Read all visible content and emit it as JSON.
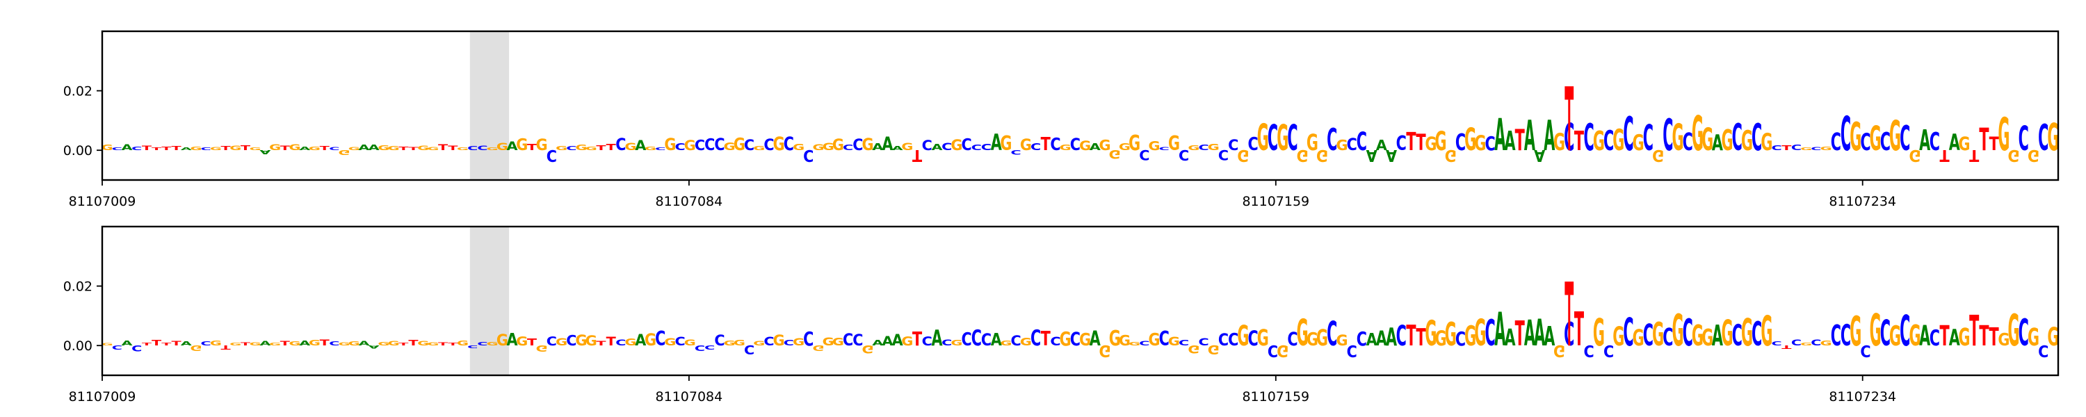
{
  "chart_data": [
    {
      "type": "sequence-logo",
      "title": "",
      "xlabel": "",
      "ylabel": "",
      "xlim": [
        81107009,
        81107259
      ],
      "ylim": [
        -0.01,
        0.04
      ],
      "x_ticks": [
        81107009,
        81107084,
        81107159,
        81107234
      ],
      "x_tick_labels": [
        "81107009",
        "81107084",
        "81107159",
        "81107234"
      ],
      "y_ticks": [
        0.0,
        0.02
      ],
      "y_tick_labels": [
        "0.00",
        "0.02"
      ],
      "highlight_range": [
        81107056,
        81107061
      ],
      "sequence": "GCACTTTTAGCGTGTGAGTGAGTCGGAAGGTTGGTTGCCGGAGTGCGCGGTTCGAGCGCGCCCGGCGCGCGCGGGCCGAAAGTCACGCCCAGCGCTCGCGAGGGGCGCGCGCGCCGCGCGCGGGCGCCAAACTTGGGCGGCAATAAAGCTCGCGCGCGCGCGGAGCGCGCTCGCGCCGCGCGCGACTAGTTTGGCGCG",
      "letter_colors": {
        "A": "#008000",
        "C": "#0000ff",
        "G": "#ffa500",
        "T": "#ff0000"
      },
      "grid": false,
      "legend": "none"
    },
    {
      "type": "sequence-logo",
      "title": "",
      "xlabel": "",
      "ylabel": "",
      "xlim": [
        81107009,
        81107259
      ],
      "ylim": [
        -0.01,
        0.04
      ],
      "x_ticks": [
        81107009,
        81107084,
        81107159,
        81107234
      ],
      "x_tick_labels": [
        "81107009",
        "81107084",
        "81107159",
        "81107234"
      ],
      "y_ticks": [
        0.0,
        0.02
      ],
      "y_tick_labels": [
        "0.00",
        "0.02"
      ],
      "highlight_range": [
        81107056,
        81107061
      ],
      "sequence": "GCACTTTTAGCGTGTGAGTGAGTCGGAAGGTTGGTTGCCGGAGTGCGCGGTTCGAGCGCGCCCGGCGCGCGCGGGCCGAAAGTCACGCCCAGCGCTCGCGAGGGGCGCGCGCGCCGCGCGCGGGCGCCAAACTTGGGCGGCAATAAAGCTCGCGCGCGCGCGGAGCGCGCTCGCGCCGCGCGCGACTAGTTTGGCGCG",
      "letter_colors": {
        "A": "#008000",
        "C": "#0000ff",
        "G": "#ffa500",
        "T": "#ff0000"
      },
      "grid": false,
      "legend": "none"
    }
  ]
}
